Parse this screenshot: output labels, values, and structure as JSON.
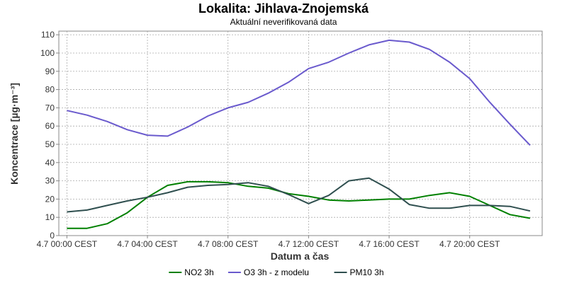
{
  "chart_data": {
    "type": "line",
    "title": "Lokalita: Jihlava-Znojemská",
    "subtitle": "Aktuální neverifikovaná data",
    "xlabel": "Datum a čas",
    "ylabel": "Koncentrace [µg·m⁻³]",
    "x_hours": [
      0,
      1,
      2,
      3,
      4,
      5,
      6,
      7,
      8,
      9,
      10,
      11,
      12,
      13,
      14,
      15,
      16,
      17,
      18,
      19,
      20,
      21,
      22,
      23
    ],
    "xlim": [
      -0.4,
      23.6
    ],
    "ylim": [
      0,
      112
    ],
    "x_ticks": [
      {
        "hour": 0,
        "label": "4.7 00:00 CEST"
      },
      {
        "hour": 4,
        "label": "4.7 04:00 CEST"
      },
      {
        "hour": 8,
        "label": "4.7 08:00 CEST"
      },
      {
        "hour": 12,
        "label": "4.7 12:00 CEST"
      },
      {
        "hour": 16,
        "label": "4.7 16:00 CEST"
      },
      {
        "hour": 20,
        "label": "4.7 20:00 CEST"
      }
    ],
    "y_ticks": [
      0,
      10,
      20,
      30,
      40,
      50,
      60,
      70,
      80,
      90,
      100,
      110
    ],
    "grid": true,
    "legend_position": "bottom-center",
    "series": [
      {
        "name": "NO2 3h",
        "color": "#008000",
        "values": [
          4,
          4,
          6.5,
          12.5,
          21,
          27.5,
          29.5,
          29.5,
          29,
          27,
          26,
          23,
          21.5,
          19.5,
          19,
          19.5,
          20,
          20,
          22,
          23.5,
          21.5,
          16.5,
          11.5,
          9.5
        ]
      },
      {
        "name": "O3 3h - z modelu",
        "color": "#6a5acd",
        "values": [
          68.5,
          66,
          62.5,
          58,
          55,
          54.5,
          59.5,
          65.5,
          70,
          73,
          78,
          84,
          91.5,
          95,
          100,
          104.5,
          107,
          106,
          102,
          95,
          86,
          73,
          61,
          49.5
        ]
      },
      {
        "name": "PM10 3h",
        "color": "#2f4f4f",
        "values": [
          13,
          14,
          16.5,
          19,
          21,
          23.5,
          26.5,
          27.5,
          28,
          29,
          27,
          22.5,
          17.5,
          22,
          30,
          31.5,
          25.5,
          17,
          15,
          15,
          16.5,
          16.5,
          16,
          13.5
        ]
      }
    ]
  }
}
